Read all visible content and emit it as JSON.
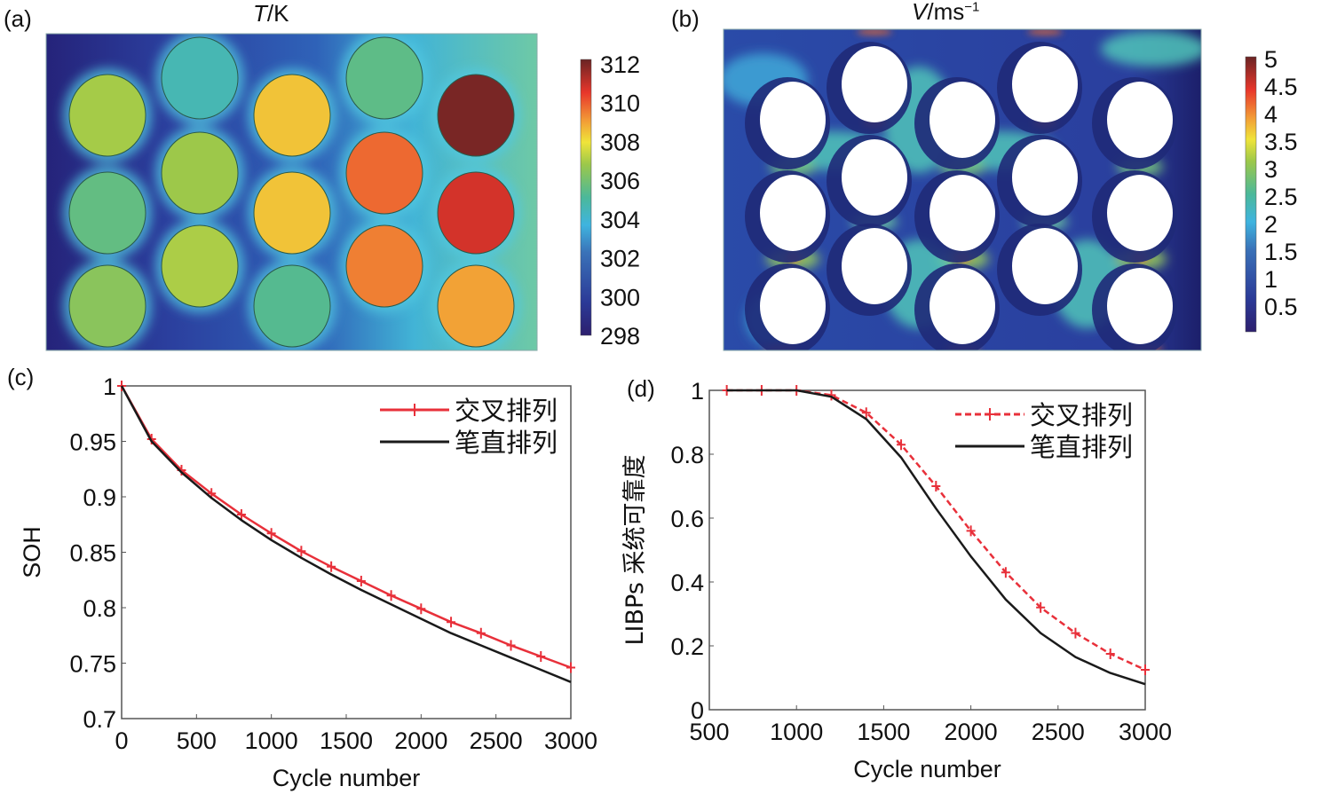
{
  "figure": {
    "panels": [
      {
        "label": "(a)",
        "title_var": "T",
        "title_unit": "/K",
        "title_sup": ""
      },
      {
        "label": "(b)",
        "title_var": "V",
        "title_unit": "/ms",
        "title_sup": "−1"
      },
      {
        "label": "(c)"
      },
      {
        "label": "(d)"
      }
    ]
  },
  "heatmaps": {
    "temperature": {
      "colorbar_ticks": [
        "312",
        "310",
        "308",
        "306",
        "304",
        "302",
        "300",
        "298"
      ],
      "range": [
        298,
        312
      ],
      "cell_temperatures_K": [
        [
          306.8,
          305.5,
          306.3
        ],
        [
          304.5,
          306.7,
          306.9
        ],
        [
          308.3,
          308.3,
          305.2
        ],
        [
          305.4,
          309.6,
          309.3
        ],
        [
          311.8,
          310.6,
          308.8
        ]
      ],
      "cells_note": "columns left-to-right, rows top-to-bottom; staggered layout"
    },
    "velocity": {
      "colorbar_ticks": [
        "5",
        "4.5",
        "4",
        "3.5",
        "3",
        "2.5",
        "2",
        "1.5",
        "1",
        "0.5"
      ],
      "range": [
        0,
        5
      ]
    }
  },
  "chart_data": [
    {
      "type": "line",
      "panel": "(c)",
      "xlabel": "Cycle number",
      "ylabel": "SOH",
      "xlim": [
        0,
        3000
      ],
      "ylim": [
        0.7,
        1.0
      ],
      "xticks": [
        "0",
        "500",
        "1000",
        "1500",
        "2000",
        "2500",
        "3000"
      ],
      "yticks": [
        "1",
        "0.95",
        "0.9",
        "0.85",
        "0.8",
        "0.75",
        "0.7"
      ],
      "grid": false,
      "legend_position": "top-right",
      "series": [
        {
          "name": "交叉排列",
          "color": "#e8303a",
          "style": "solid",
          "marker": "+",
          "x": [
            0,
            200,
            400,
            600,
            800,
            1000,
            1200,
            1400,
            1600,
            1800,
            2000,
            2200,
            2400,
            2600,
            2800,
            3000
          ],
          "y": [
            1.0,
            0.952,
            0.924,
            0.903,
            0.884,
            0.867,
            0.851,
            0.837,
            0.824,
            0.811,
            0.799,
            0.787,
            0.777,
            0.766,
            0.756,
            0.746
          ]
        },
        {
          "name": "笔直排列",
          "color": "#1a1a1a",
          "style": "solid",
          "marker": "none",
          "x": [
            0,
            200,
            400,
            600,
            800,
            1000,
            1200,
            1400,
            1600,
            1800,
            2000,
            2200,
            2400,
            2600,
            2800,
            3000
          ],
          "y": [
            1.0,
            0.95,
            0.922,
            0.899,
            0.879,
            0.861,
            0.845,
            0.83,
            0.816,
            0.803,
            0.79,
            0.777,
            0.766,
            0.755,
            0.744,
            0.733
          ]
        }
      ]
    },
    {
      "type": "line",
      "panel": "(d)",
      "xlabel": "Cycle number",
      "ylabel": "LIBPs 采统可靠度",
      "xlim": [
        500,
        3000
      ],
      "ylim": [
        0,
        1
      ],
      "xticks": [
        "500",
        "1000",
        "1500",
        "2000",
        "2500",
        "3000"
      ],
      "yticks": [
        "1",
        "0.8",
        "0.6",
        "0.4",
        "0.2",
        "0"
      ],
      "grid": false,
      "legend_position": "top-right",
      "series": [
        {
          "name": "交叉排列",
          "color": "#e8303a",
          "style": "dashed",
          "marker": "+",
          "x": [
            600,
            800,
            1000,
            1200,
            1400,
            1600,
            1800,
            2000,
            2200,
            2400,
            2600,
            2800,
            3000
          ],
          "y": [
            1.0,
            1.0,
            1.0,
            0.985,
            0.93,
            0.83,
            0.7,
            0.56,
            0.43,
            0.32,
            0.24,
            0.175,
            0.125
          ]
        },
        {
          "name": "笔直排列",
          "color": "#1a1a1a",
          "style": "solid",
          "marker": "none",
          "x": [
            600,
            800,
            1000,
            1200,
            1400,
            1600,
            1800,
            2000,
            2200,
            2400,
            2600,
            2800,
            3000
          ],
          "y": [
            1.0,
            1.0,
            1.0,
            0.98,
            0.91,
            0.79,
            0.63,
            0.48,
            0.345,
            0.24,
            0.165,
            0.115,
            0.08
          ]
        }
      ]
    }
  ]
}
